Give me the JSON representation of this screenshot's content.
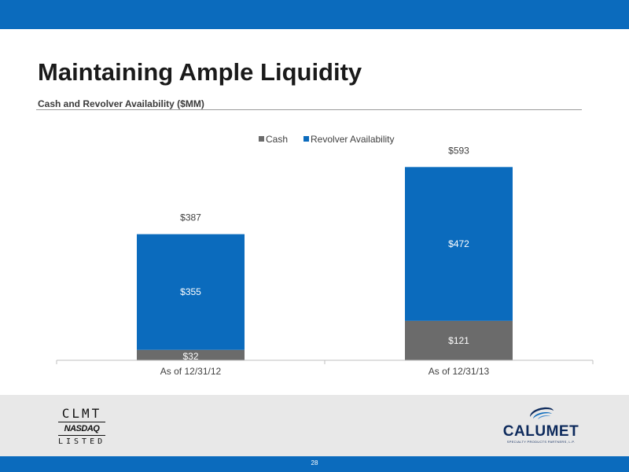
{
  "page": {
    "title": "Maintaining Ample Liquidity",
    "subtitle": "Cash and Revolver Availability ($MM)",
    "page_number": "28"
  },
  "logos": {
    "clmt_ticker": "CLMT",
    "nasdaq": "NASDAQ",
    "listed": "LISTED",
    "calumet_name": "CALUMET",
    "calumet_tagline": "SPECIALTY PRODUCTS PARTNERS, L.P."
  },
  "colors": {
    "brand_blue": "#0b6bbd",
    "cash": "#6b6b6b",
    "revolver": "#0b6bbd"
  },
  "chart_data": {
    "type": "bar",
    "stacked": true,
    "categories": [
      "As of 12/31/12",
      "As of 12/31/13"
    ],
    "series": [
      {
        "name": "Cash",
        "values": [
          32,
          121
        ],
        "labels": [
          "$32",
          "$121"
        ],
        "color": "#6b6b6b"
      },
      {
        "name": "Revolver Availability",
        "values": [
          355,
          472
        ],
        "labels": [
          "$355",
          "$472"
        ],
        "color": "#0b6bbd"
      }
    ],
    "totals": [
      387,
      593
    ],
    "total_labels": [
      "$387",
      "$593"
    ],
    "ylim": [
      0,
      700
    ],
    "grid": false,
    "legend": "top-center",
    "xlabel": "",
    "ylabel": ""
  }
}
